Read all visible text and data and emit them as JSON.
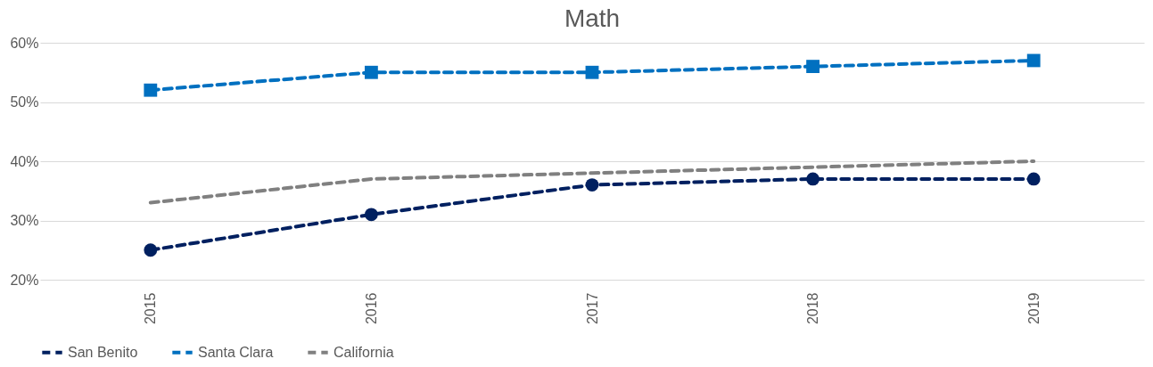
{
  "chart_data": {
    "type": "line",
    "title": "Math",
    "categories": [
      "2015",
      "2016",
      "2017",
      "2018",
      "2019"
    ],
    "series": [
      {
        "name": "San Benito",
        "color": "#002060",
        "marker": "circle",
        "values": [
          25,
          31,
          36,
          37,
          37
        ]
      },
      {
        "name": "Santa Clara",
        "color": "#0070c0",
        "marker": "square",
        "values": [
          52,
          55,
          55,
          56,
          57
        ]
      },
      {
        "name": "California",
        "color": "#808080",
        "marker": "none",
        "values": [
          33,
          37,
          38,
          39,
          40
        ]
      }
    ],
    "ylim": [
      20,
      60
    ],
    "yticks": [
      {
        "value": 20,
        "label": "20%"
      },
      {
        "value": 30,
        "label": "30%"
      },
      {
        "value": 40,
        "label": "40%"
      },
      {
        "value": 50,
        "label": "50%"
      },
      {
        "value": 60,
        "label": "60%"
      }
    ],
    "grid": "y",
    "legend": "bottom",
    "line_style": "dashed"
  }
}
